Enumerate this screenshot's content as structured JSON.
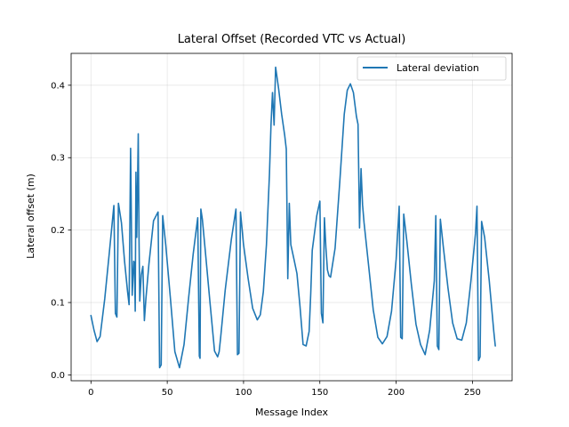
{
  "chart_data": {
    "type": "line",
    "title": "Lateral Offset (Recorded VTC vs Actual)",
    "xlabel": "Message Index",
    "ylabel": "Lateral offset (m)",
    "xlim": [
      -13,
      276
    ],
    "ylim": [
      -0.008,
      0.444
    ],
    "xticks": [
      0,
      50,
      100,
      150,
      200,
      250
    ],
    "yticks": [
      0.0,
      0.1,
      0.2,
      0.3,
      0.4
    ],
    "grid": true,
    "legend_position": "top-right",
    "series": [
      {
        "name": "Lateral deviation",
        "color": "#1f77b4",
        "x": [
          0,
          2,
          4,
          6,
          9,
          12,
          15,
          16,
          17,
          18,
          20,
          22,
          24,
          25,
          26,
          27,
          28,
          28.5,
          29,
          29.5,
          30,
          30.5,
          31,
          31.5,
          32,
          33,
          34,
          35,
          36,
          38,
          41,
          44,
          45,
          46,
          47,
          49,
          52,
          55,
          58,
          61,
          64,
          67,
          70,
          71,
          71.5,
          72,
          73,
          75,
          78,
          81,
          83,
          84,
          85,
          88,
          92,
          95,
          96,
          97,
          98,
          100,
          103,
          106,
          109,
          111,
          113,
          115,
          117,
          118,
          119,
          120,
          121,
          123,
          125,
          127,
          128,
          129,
          130,
          131,
          133,
          135,
          137,
          139,
          141,
          143,
          144,
          145,
          148,
          150,
          151,
          152,
          153,
          154,
          155,
          156,
          157,
          160,
          163,
          166,
          168,
          170,
          172,
          174,
          175,
          176,
          177,
          178,
          179,
          182,
          185,
          188,
          191,
          194,
          197,
          200,
          202,
          203,
          204,
          205,
          207,
          210,
          213,
          216,
          219,
          222,
          225,
          226,
          227,
          228,
          229,
          231,
          234,
          237,
          240,
          243,
          246,
          249,
          252,
          253,
          254,
          255,
          256,
          258,
          261,
          264,
          265
        ],
        "y": [
          0.082,
          0.062,
          0.046,
          0.053,
          0.105,
          0.168,
          0.234,
          0.085,
          0.08,
          0.237,
          0.21,
          0.157,
          0.115,
          0.097,
          0.313,
          0.11,
          0.157,
          0.155,
          0.088,
          0.28,
          0.19,
          0.26,
          0.333,
          0.185,
          0.102,
          0.138,
          0.15,
          0.075,
          0.105,
          0.153,
          0.213,
          0.225,
          0.01,
          0.014,
          0.22,
          0.18,
          0.107,
          0.032,
          0.01,
          0.042,
          0.107,
          0.167,
          0.217,
          0.026,
          0.023,
          0.229,
          0.215,
          0.17,
          0.1,
          0.033,
          0.025,
          0.032,
          0.052,
          0.117,
          0.187,
          0.229,
          0.028,
          0.03,
          0.225,
          0.18,
          0.133,
          0.092,
          0.076,
          0.083,
          0.115,
          0.18,
          0.278,
          0.345,
          0.39,
          0.345,
          0.425,
          0.395,
          0.36,
          0.33,
          0.312,
          0.133,
          0.237,
          0.18,
          0.16,
          0.14,
          0.095,
          0.042,
          0.04,
          0.06,
          0.112,
          0.172,
          0.22,
          0.24,
          0.085,
          0.072,
          0.217,
          0.175,
          0.145,
          0.137,
          0.135,
          0.175,
          0.265,
          0.36,
          0.393,
          0.402,
          0.39,
          0.357,
          0.346,
          0.203,
          0.285,
          0.235,
          0.21,
          0.15,
          0.09,
          0.052,
          0.043,
          0.053,
          0.088,
          0.16,
          0.233,
          0.052,
          0.05,
          0.222,
          0.185,
          0.125,
          0.07,
          0.042,
          0.028,
          0.062,
          0.13,
          0.22,
          0.04,
          0.035,
          0.215,
          0.175,
          0.12,
          0.072,
          0.05,
          0.048,
          0.072,
          0.13,
          0.195,
          0.233,
          0.02,
          0.025,
          0.212,
          0.19,
          0.13,
          0.06,
          0.04
        ]
      }
    ]
  }
}
